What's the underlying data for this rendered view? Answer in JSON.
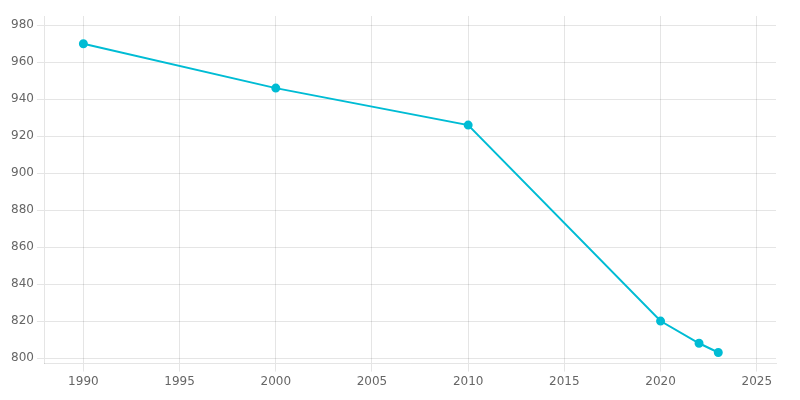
{
  "chart_data": {
    "type": "line",
    "x": [
      1990,
      2000,
      2010,
      2020,
      2022,
      2023
    ],
    "values": [
      970,
      946,
      926,
      820,
      808,
      803
    ],
    "color": "#00bcd4",
    "marker": "circle",
    "xlim": [
      1988,
      2026
    ],
    "xticks": [
      1990,
      1995,
      2000,
      2005,
      2010,
      2015,
      2020,
      2025
    ],
    "ylim": [
      797,
      985
    ],
    "yticks": [
      800,
      820,
      840,
      860,
      880,
      900,
      920,
      940,
      960,
      980
    ],
    "grid": true
  }
}
